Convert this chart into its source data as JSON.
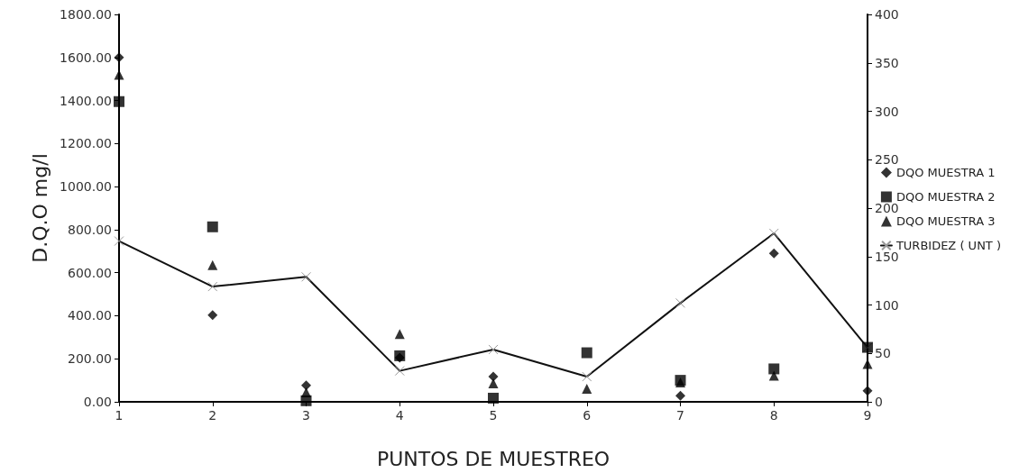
{
  "chart_data": {
    "type": "scatter",
    "xlabel": "PUNTOS DE MUESTREO",
    "ylabel": "D.Q.O mg/l",
    "x": [
      1,
      2,
      3,
      4,
      5,
      6,
      7,
      8,
      9
    ],
    "xlim": [
      1,
      9
    ],
    "xticks": [
      1,
      2,
      3,
      4,
      5,
      6,
      7,
      8,
      9
    ],
    "ylim": [
      0,
      1800
    ],
    "yticks": [
      {
        "value": 0,
        "label": "0.00"
      },
      {
        "value": 200,
        "label": "200.00"
      },
      {
        "value": 400,
        "label": "400.00"
      },
      {
        "value": 600,
        "label": "600.00"
      },
      {
        "value": 800,
        "label": "800.00"
      },
      {
        "value": 1000,
        "label": "1000.00"
      },
      {
        "value": 1200,
        "label": "1200.00"
      },
      {
        "value": 1400,
        "label": "1400.00"
      },
      {
        "value": 1600,
        "label": "1600.00"
      },
      {
        "value": 1800,
        "label": "1800.00"
      }
    ],
    "y2lim": [
      0,
      400
    ],
    "y2ticks": [
      0,
      50,
      100,
      150,
      200,
      250,
      300,
      350,
      400
    ],
    "grid": false,
    "legend": "right",
    "series": [
      {
        "name": "DQO MUESTRA 1",
        "color": "#000000",
        "marker": "diamond",
        "values": [
          1600,
          403,
          76,
          205,
          117,
          null,
          28,
          690,
          51
        ]
      },
      {
        "name": "DQO MUESTRA 2",
        "color": "#000000",
        "marker": "square",
        "values": [
          1395,
          813,
          5,
          214,
          17,
          228,
          100,
          153,
          253
        ]
      },
      {
        "name": "DQO MUESTRA 3",
        "color": "#000000",
        "marker": "triangle",
        "values": [
          1520,
          635,
          44,
          315,
          86,
          61,
          90,
          121,
          176
        ]
      },
      {
        "name": "TURBIDEZ ( UNT )",
        "type": "line",
        "axis": "y2",
        "color": "#111111",
        "marker": "cross",
        "line_style": "solid",
        "values": [
          166,
          119,
          129,
          32,
          54,
          26,
          102,
          174,
          56
        ]
      }
    ]
  }
}
